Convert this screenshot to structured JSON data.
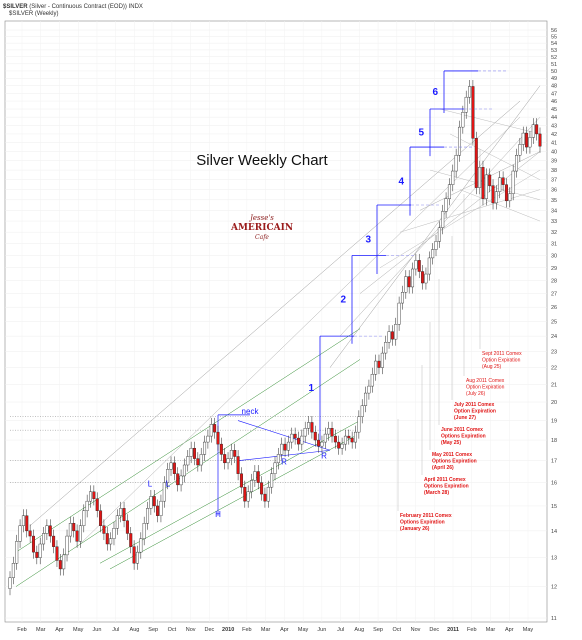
{
  "header": {
    "symbol": "$SILVER",
    "description": "(Silver - Continuous Contract (EOD)) INDX",
    "legend": "$SILVER (Weekly)"
  },
  "logo": {
    "line1": "Jesse's",
    "line2": "AMERICAIN",
    "line3": "Cafe"
  },
  "colors": {
    "up_candle": "#ffffff",
    "down_candle": "#e01515",
    "wave_lines": "#1a1aff",
    "notes": "#e01515",
    "channel_green": "#2d8a2d"
  },
  "chart_data": {
    "type": "candlestick",
    "title": "Silver Weekly Chart",
    "ylim": [
      11,
      56
    ],
    "y_scale": "log",
    "y_ticks": [
      11,
      12,
      13,
      14,
      15,
      16,
      17,
      18,
      19,
      20,
      21,
      22,
      23,
      24,
      25,
      26,
      27,
      28,
      29,
      30,
      31,
      32,
      33,
      34,
      35,
      36,
      37,
      38,
      39,
      40,
      41,
      42,
      43,
      44,
      45,
      46,
      47,
      48,
      49,
      50,
      51,
      52,
      53,
      54,
      55,
      56
    ],
    "x_ticks": [
      {
        "label": "Feb",
        "bold": false
      },
      {
        "label": "Mar",
        "bold": false
      },
      {
        "label": "Apr",
        "bold": false
      },
      {
        "label": "May",
        "bold": false
      },
      {
        "label": "Jun",
        "bold": false
      },
      {
        "label": "Jul",
        "bold": false
      },
      {
        "label": "Aug",
        "bold": false
      },
      {
        "label": "Sep",
        "bold": false
      },
      {
        "label": "Oct",
        "bold": false
      },
      {
        "label": "Nov",
        "bold": false
      },
      {
        "label": "Dec",
        "bold": false
      },
      {
        "label": "2010",
        "bold": true
      },
      {
        "label": "Feb",
        "bold": false
      },
      {
        "label": "Mar",
        "bold": false
      },
      {
        "label": "Apr",
        "bold": false
      },
      {
        "label": "May",
        "bold": false
      },
      {
        "label": "Jun",
        "bold": false
      },
      {
        "label": "Jul",
        "bold": false
      },
      {
        "label": "Aug",
        "bold": false
      },
      {
        "label": "Sep",
        "bold": false
      },
      {
        "label": "Oct",
        "bold": false
      },
      {
        "label": "Nov",
        "bold": false
      },
      {
        "label": "Dec",
        "bold": false
      },
      {
        "label": "2011",
        "bold": true
      },
      {
        "label": "Feb",
        "bold": false
      },
      {
        "label": "Mar",
        "bold": false
      },
      {
        "label": "Apr",
        "bold": false
      },
      {
        "label": "May",
        "bold": false
      }
    ],
    "closes": [
      12.3,
      12.8,
      13.6,
      14.2,
      14.6,
      14.0,
      13.8,
      13.2,
      13.0,
      13.5,
      13.9,
      14.2,
      13.8,
      13.4,
      12.9,
      12.6,
      13.1,
      13.8,
      14.3,
      14.0,
      13.6,
      14.2,
      14.8,
      15.2,
      15.6,
      15.3,
      14.8,
      14.2,
      13.9,
      13.5,
      13.7,
      14.1,
      14.6,
      14.9,
      14.4,
      13.9,
      13.4,
      12.8,
      13.2,
      13.7,
      14.3,
      14.9,
      15.4,
      15.0,
      14.6,
      15.2,
      16.0,
      16.6,
      16.9,
      16.4,
      15.9,
      16.3,
      16.8,
      17.2,
      17.6,
      17.1,
      16.8,
      17.3,
      17.9,
      18.2,
      18.8,
      18.4,
      17.8,
      17.3,
      16.9,
      17.1,
      17.5,
      17.2,
      16.4,
      15.8,
      15.2,
      15.6,
      16.1,
      16.5,
      16.0,
      15.5,
      15.2,
      15.8,
      16.4,
      16.9,
      17.3,
      17.8,
      17.5,
      17.9,
      18.3,
      18.1,
      17.8,
      18.2,
      18.6,
      18.9,
      18.4,
      18.0,
      17.7,
      17.9,
      18.3,
      18.6,
      18.2,
      17.9,
      17.6,
      17.8,
      18.2,
      18.1,
      17.9,
      18.4,
      19.2,
      19.8,
      20.5,
      20.9,
      21.6,
      22.4,
      22.0,
      22.9,
      23.6,
      24.3,
      23.8,
      24.8,
      26.3,
      27.1,
      28.3,
      27.5,
      28.9,
      29.6,
      28.7,
      27.8,
      28.5,
      29.8,
      30.5,
      31.2,
      32.4,
      33.9,
      35.1,
      36.5,
      37.9,
      39.6,
      42.8,
      44.6,
      46.5,
      47.9,
      41.5,
      36.2,
      38.3,
      35.1,
      37.5,
      36.4,
      34.7,
      35.8,
      37.2,
      36.5,
      34.9,
      35.6,
      37.9,
      39.6,
      40.8,
      42.1,
      40.5,
      41.6,
      43.1,
      42.0,
      40.6
    ],
    "waves": [
      {
        "label": "1",
        "base": 18.0,
        "top": 24.0
      },
      {
        "label": "2",
        "base": 23.5,
        "top": 30.0
      },
      {
        "label": "3",
        "base": 28.5,
        "top": 34.5
      },
      {
        "label": "4",
        "base": 33.5,
        "top": 40.5
      },
      {
        "label": "5",
        "base": 39.5,
        "top": 45.0
      },
      {
        "label": "6",
        "base": 44.5,
        "top": 50.0
      }
    ],
    "pattern_labels": [
      {
        "label": "neck",
        "at": 19.2
      },
      {
        "label": "L",
        "at": 16.0
      },
      {
        "label": "L",
        "at": 16.0
      },
      {
        "label": "H",
        "at": 14.7
      },
      {
        "label": "R",
        "at": 17.0
      },
      {
        "label": "R",
        "at": 17.3
      }
    ],
    "annotations": [
      {
        "lines": [
          "Sept 2011 Comex",
          "Option Expiration",
          "(Aug 25)"
        ],
        "bold": false
      },
      {
        "lines": [
          "Aug 2011 Comex",
          "Option Expiration",
          "(July 26)"
        ],
        "bold": false
      },
      {
        "lines": [
          "July 2011 Comex",
          "Option Expiration",
          "(June 27)"
        ],
        "bold": true
      },
      {
        "lines": [
          "June 2011 Comex",
          "Options Expiration",
          "(May 25)"
        ],
        "bold": true
      },
      {
        "lines": [
          "May 2011 Comex",
          "Options Expiration",
          "(April 26)"
        ],
        "bold": true
      },
      {
        "lines": [
          "April 2011 Comex",
          "Options Expiration",
          "(March 28)"
        ],
        "bold": true
      },
      {
        "lines": [
          "February 2011 Comex",
          "Options Expiration",
          "(January 26)"
        ],
        "bold": true
      }
    ]
  }
}
